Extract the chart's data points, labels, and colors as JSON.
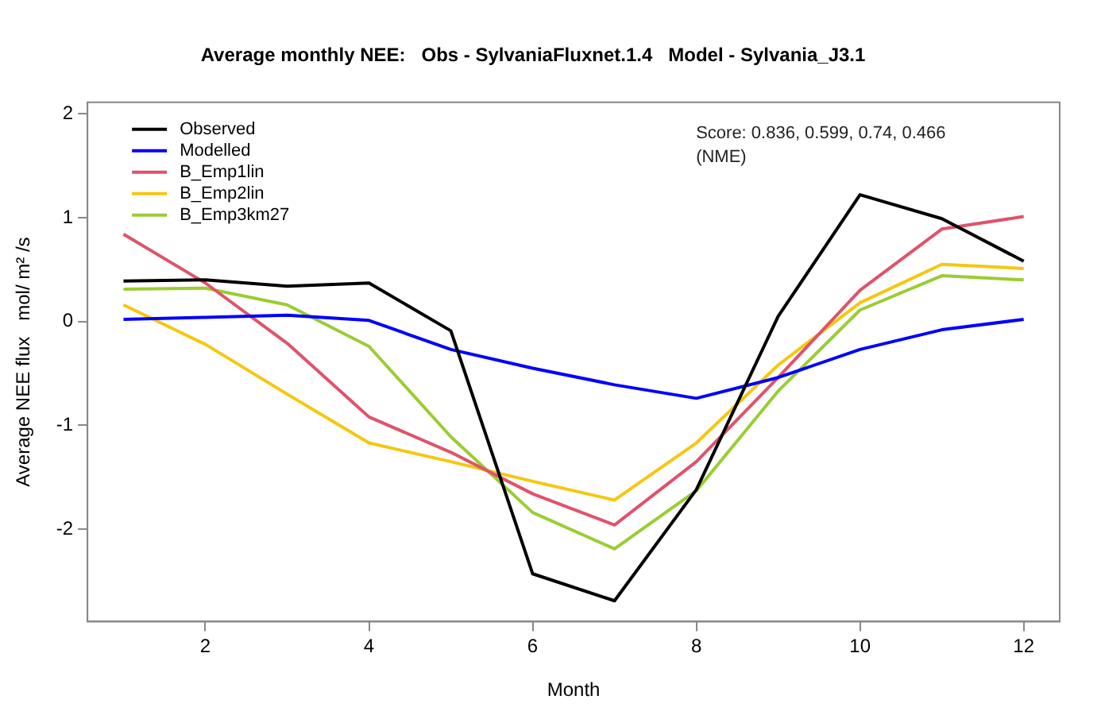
{
  "chart_data": {
    "type": "line",
    "title": "Average monthly NEE:   Obs - SylvaniaFluxnet.1.4   Model - Sylvania_J3.1",
    "xlabel": "Month",
    "ylabel": "Average NEE flux   mol/ m² /s",
    "x": [
      1,
      2,
      3,
      4,
      5,
      6,
      7,
      8,
      9,
      10,
      11,
      12
    ],
    "series": [
      {
        "name": "Observed",
        "color": "#000000",
        "values": [
          0.39,
          0.4,
          0.34,
          0.37,
          -0.09,
          -2.43,
          -2.69,
          -1.62,
          0.05,
          1.22,
          0.99,
          0.58
        ]
      },
      {
        "name": "Modelled",
        "color": "#0000ff",
        "values": [
          0.02,
          0.04,
          0.06,
          0.01,
          -0.27,
          -0.45,
          -0.61,
          -0.74,
          -0.54,
          -0.27,
          -0.08,
          0.02
        ]
      },
      {
        "name": "B_Emp1lin",
        "color": "#df536b",
        "values": [
          0.84,
          0.37,
          -0.21,
          -0.92,
          -1.26,
          -1.66,
          -1.96,
          -1.35,
          -0.54,
          0.3,
          0.89,
          1.01
        ]
      },
      {
        "name": "B_Emp2lin",
        "color": "#f5c710",
        "values": [
          0.16,
          -0.22,
          -0.7,
          -1.17,
          -1.35,
          -1.54,
          -1.72,
          -1.17,
          -0.42,
          0.18,
          0.55,
          0.51
        ]
      },
      {
        "name": "B_Emp3km27",
        "color": "#9acd32",
        "values": [
          0.31,
          0.32,
          0.16,
          -0.24,
          -1.11,
          -1.84,
          -2.19,
          -1.63,
          -0.67,
          0.11,
          0.44,
          0.4
        ]
      }
    ],
    "xlim": [
      0.56,
      12.44
    ],
    "xticks": [
      2,
      4,
      6,
      8,
      10,
      12
    ],
    "ylim": [
      -2.89,
      2.11
    ],
    "yticks": [
      -2,
      -1,
      0,
      1,
      2
    ],
    "annotations": [
      "Score: 0.836, 0.599, 0.74, 0.466\n(NME)"
    ],
    "legend": "top left",
    "grid": false,
    "marker": "none",
    "line_style": "solid"
  }
}
